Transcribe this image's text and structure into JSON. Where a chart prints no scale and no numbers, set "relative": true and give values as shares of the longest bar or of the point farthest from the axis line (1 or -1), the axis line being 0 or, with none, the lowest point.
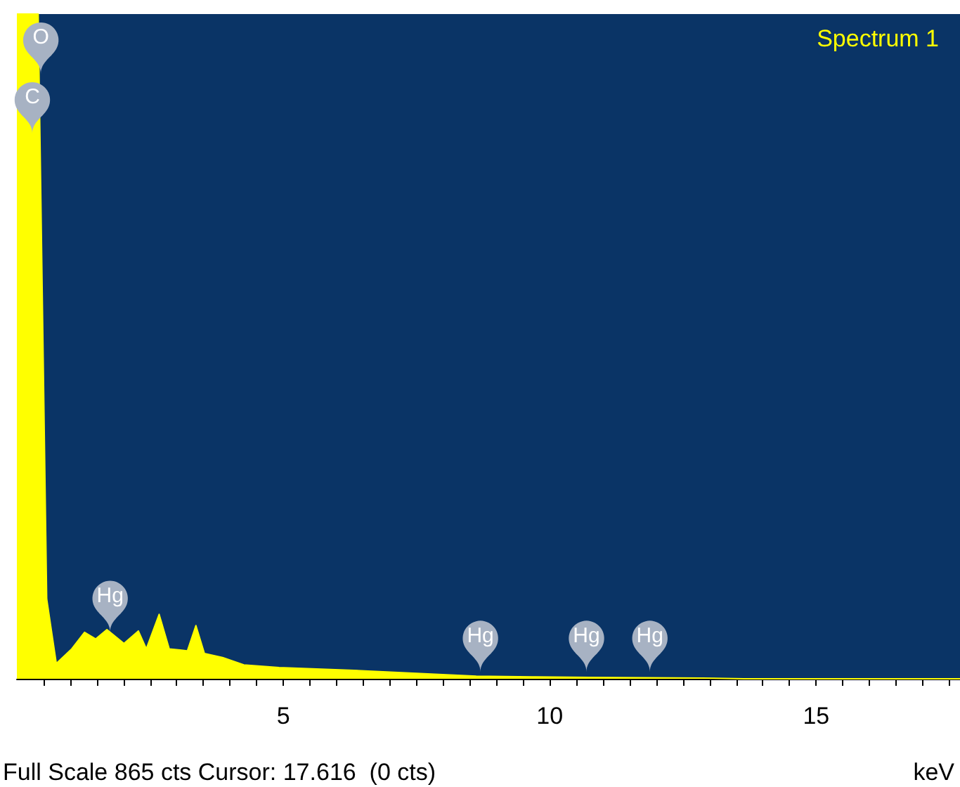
{
  "chart_data": {
    "type": "area",
    "title": "Spectrum 1",
    "xlabel": "keV",
    "relative": true,
    "tick_labels": "x",
    "x": [
      0.0,
      0.4,
      0.56,
      0.74,
      1.03,
      1.27,
      1.48,
      1.69,
      2.01,
      2.28,
      2.43,
      2.67,
      2.86,
      3.2,
      3.36,
      3.52,
      3.86,
      4.26,
      4.92,
      6.24,
      7.57,
      8.62,
      9.68,
      10.74,
      12.86,
      13.65,
      17.7
    ],
    "series": [
      {
        "color": "#ffff00",
        "values": [
          1,
          1,
          0.12,
          0.023,
          0.045,
          0.07,
          0.06,
          0.074,
          0.053,
          0.072,
          0.045,
          0.097,
          0.045,
          0.042,
          0.08,
          0.038,
          0.032,
          0.021,
          0.017,
          0.013,
          0.008,
          0.004,
          0.003,
          0.002,
          0.001,
          0,
          0
        ]
      }
    ],
    "xlim": [
      0,
      17.7
    ],
    "xticks": [
      {
        "value": 0.5,
        "label": null
      },
      {
        "value": 1,
        "label": null
      },
      {
        "value": 1.5,
        "label": null
      },
      {
        "value": 2,
        "label": null
      },
      {
        "value": 2.5,
        "label": null
      },
      {
        "value": 3,
        "label": null
      },
      {
        "value": 3.5,
        "label": null
      },
      {
        "value": 4,
        "label": null
      },
      {
        "value": 4.5,
        "label": null
      },
      5,
      {
        "value": 5.5,
        "label": null
      },
      {
        "value": 6,
        "label": null
      },
      {
        "value": 6.5,
        "label": null
      },
      {
        "value": 7,
        "label": null
      },
      {
        "value": 7.5,
        "label": null
      },
      {
        "value": 8,
        "label": null
      },
      {
        "value": 8.5,
        "label": null
      },
      {
        "value": 9,
        "label": null
      },
      {
        "value": 9.5,
        "label": null
      },
      10,
      {
        "value": 10.5,
        "label": null
      },
      {
        "value": 11,
        "label": null
      },
      {
        "value": 11.5,
        "label": null
      },
      {
        "value": 12,
        "label": null
      },
      {
        "value": 12.5,
        "label": null
      },
      {
        "value": 13,
        "label": null
      },
      {
        "value": 13.5,
        "label": null
      },
      {
        "value": 14,
        "label": null
      },
      {
        "value": 14.5,
        "label": null
      },
      15,
      {
        "value": 15.5,
        "label": null
      },
      {
        "value": 16,
        "label": null
      },
      {
        "value": 16.5,
        "label": null
      },
      {
        "value": 17,
        "label": null
      },
      {
        "value": 17.5,
        "label": null
      }
    ],
    "annotations": [
      {
        "text": "O",
        "x": 0.45,
        "y": 0.91
      },
      {
        "text": "C",
        "x": 0.29,
        "y": 0.82
      },
      {
        "text": "Hg",
        "x": 1.75,
        "y": 0.07
      },
      {
        "text": "Hg",
        "x": 8.7,
        "y": 0.01
      },
      {
        "text": "Hg",
        "x": 10.69,
        "y": 0.01
      },
      {
        "text": "Hg",
        "x": 11.88,
        "y": 0.01
      },
      "Full Scale 865 cts Cursor: 17.616  (0 cts)"
    ]
  }
}
